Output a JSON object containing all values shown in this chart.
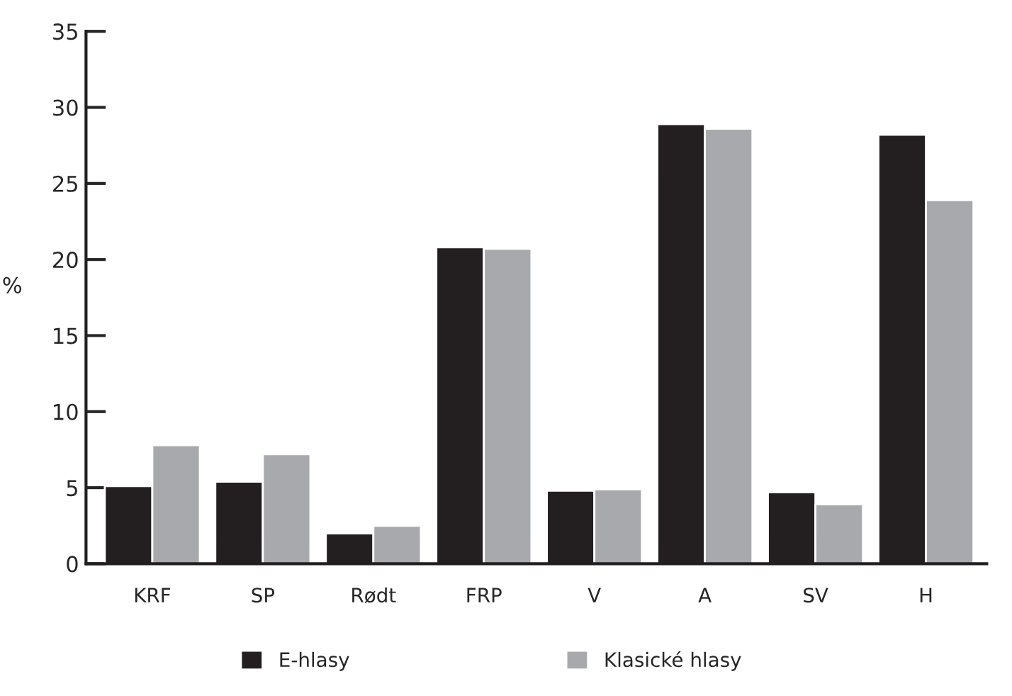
{
  "chart_data": {
    "type": "bar",
    "ylabel": "%",
    "categories": [
      "KRF",
      "SP",
      "Rødt",
      "FRP",
      "V",
      "A",
      "SV",
      "H"
    ],
    "series": [
      {
        "name": "E-hlasy",
        "color": "#231f20",
        "values": [
          5.1,
          5.4,
          2.0,
          20.8,
          4.8,
          28.9,
          4.7,
          28.2
        ]
      },
      {
        "name": "Klasické hlasy",
        "color": "#a7a9ac",
        "values": [
          7.8,
          7.2,
          2.5,
          20.7,
          4.9,
          28.6,
          3.9,
          23.9
        ]
      }
    ],
    "ylim": [
      0,
      35
    ],
    "yticks": [
      0,
      5,
      10,
      15,
      20,
      25,
      30,
      35
    ],
    "grid": false,
    "legend": "bottom"
  }
}
